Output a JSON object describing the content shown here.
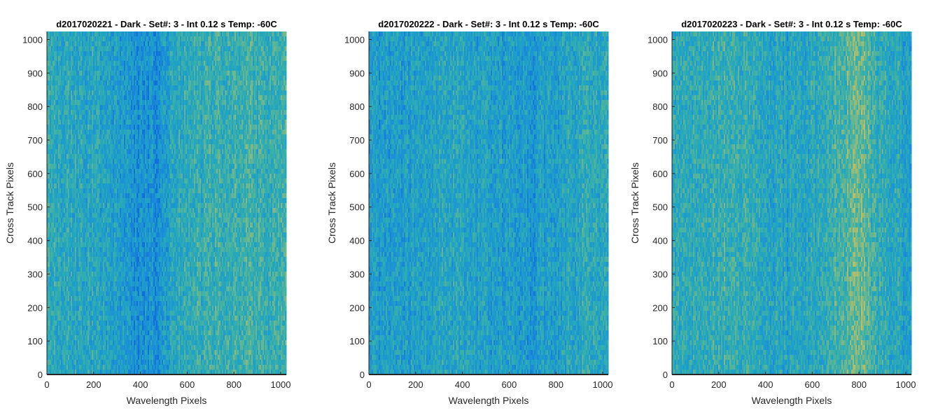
{
  "chart_data": [
    {
      "type": "heatmap",
      "title": "d2017020221 - Dark - Set#: 3 - Int 0.12 s Temp: -60C",
      "xlabel": "Wavelength Pixels",
      "ylabel": "Cross Track Pixels",
      "xlim": [
        0,
        1024
      ],
      "ylim": [
        0,
        1024
      ],
      "xticks": [
        0,
        200,
        400,
        600,
        800,
        1000
      ],
      "yticks": [
        0,
        100,
        200,
        300,
        400,
        500,
        600,
        700,
        800,
        900,
        1000
      ],
      "grid": false,
      "colormap": [
        "#0f6fd8",
        "#1c8fd8",
        "#20a3c4",
        "#3bb0a8",
        "#7ab888",
        "#c2c060"
      ],
      "column_profile": [
        {
          "x": 0,
          "level": 0.52
        },
        {
          "x": 100,
          "level": 0.46
        },
        {
          "x": 200,
          "level": 0.42
        },
        {
          "x": 300,
          "level": 0.34
        },
        {
          "x": 400,
          "level": 0.22
        },
        {
          "x": 480,
          "level": 0.26
        },
        {
          "x": 550,
          "level": 0.48
        },
        {
          "x": 650,
          "level": 0.52
        },
        {
          "x": 750,
          "level": 0.55
        },
        {
          "x": 850,
          "level": 0.57
        },
        {
          "x": 1024,
          "level": 0.55
        }
      ]
    },
    {
      "type": "heatmap",
      "title": "d2017020222 - Dark - Set#: 3 - Int 0.12 s Temp: -60C",
      "xlabel": "Wavelength Pixels",
      "ylabel": "Cross Track Pixels",
      "xlim": [
        0,
        1024
      ],
      "ylim": [
        0,
        1024
      ],
      "xticks": [
        0,
        200,
        400,
        600,
        800,
        1000
      ],
      "yticks": [
        0,
        100,
        200,
        300,
        400,
        500,
        600,
        700,
        800,
        900,
        1000
      ],
      "grid": false,
      "colormap": [
        "#0f6fd8",
        "#1c8fd8",
        "#20a3c4",
        "#3bb0a8",
        "#7ab888",
        "#c2c060"
      ],
      "column_profile": [
        {
          "x": 0,
          "level": 0.36
        },
        {
          "x": 100,
          "level": 0.32
        },
        {
          "x": 200,
          "level": 0.38
        },
        {
          "x": 300,
          "level": 0.44
        },
        {
          "x": 400,
          "level": 0.42
        },
        {
          "x": 500,
          "level": 0.38
        },
        {
          "x": 600,
          "level": 0.34
        },
        {
          "x": 700,
          "level": 0.3
        },
        {
          "x": 800,
          "level": 0.38
        },
        {
          "x": 900,
          "level": 0.46
        },
        {
          "x": 1024,
          "level": 0.52
        }
      ]
    },
    {
      "type": "heatmap",
      "title": "d2017020223 - Dark - Set#: 3 - Int 0.12 s Temp: -60C",
      "xlabel": "Wavelength Pixels",
      "ylabel": "Cross Track Pixels",
      "xlim": [
        0,
        1024
      ],
      "ylim": [
        0,
        1024
      ],
      "xticks": [
        0,
        200,
        400,
        600,
        800,
        1000
      ],
      "yticks": [
        0,
        100,
        200,
        300,
        400,
        500,
        600,
        700,
        800,
        900,
        1000
      ],
      "grid": false,
      "colormap": [
        "#0f6fd8",
        "#1c8fd8",
        "#20a3c4",
        "#3bb0a8",
        "#7ab888",
        "#c2c060"
      ],
      "column_profile": [
        {
          "x": 0,
          "level": 0.48
        },
        {
          "x": 100,
          "level": 0.5
        },
        {
          "x": 200,
          "level": 0.58
        },
        {
          "x": 300,
          "level": 0.52
        },
        {
          "x": 400,
          "level": 0.44
        },
        {
          "x": 500,
          "level": 0.4
        },
        {
          "x": 600,
          "level": 0.46
        },
        {
          "x": 700,
          "level": 0.62
        },
        {
          "x": 800,
          "level": 0.74
        },
        {
          "x": 900,
          "level": 0.5
        },
        {
          "x": 1024,
          "level": 0.4
        }
      ]
    }
  ]
}
